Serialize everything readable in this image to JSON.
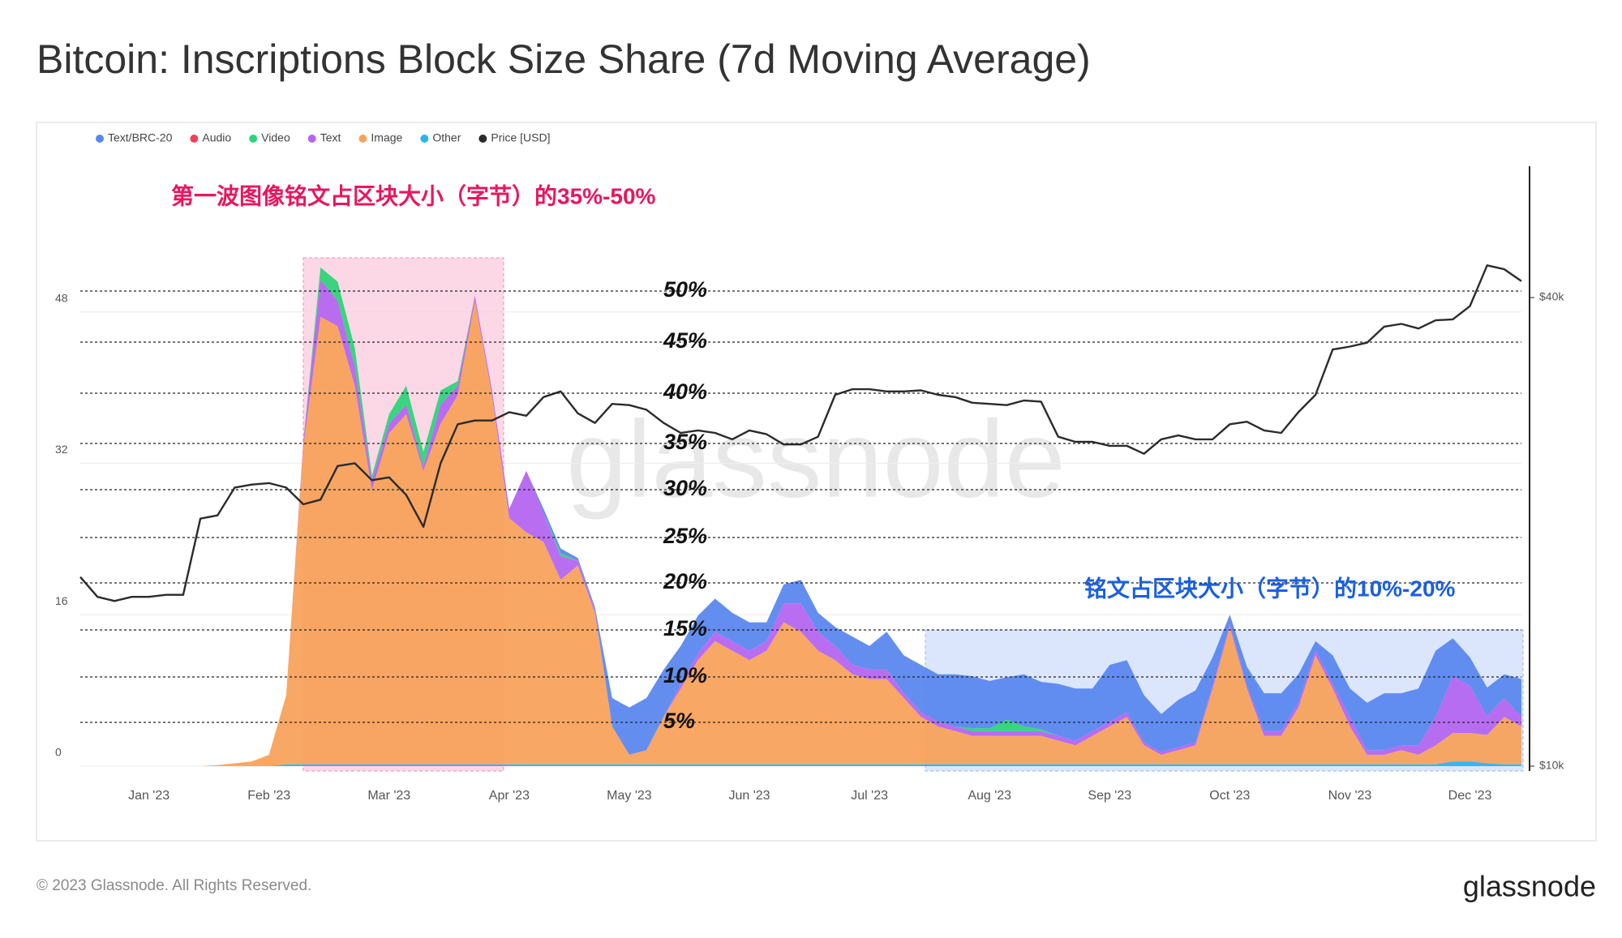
{
  "chart_data": {
    "type": "area",
    "stacked": true,
    "title": "Bitcoin: Inscriptions Block Size Share (7d Moving Average)",
    "categories": [
      null,
      null,
      null,
      null,
      "Jan '23",
      null,
      null,
      null,
      null,
      null,
      null,
      "Feb '23",
      null,
      null,
      null,
      null,
      null,
      null,
      "Mar '23",
      null,
      null,
      null,
      null,
      null,
      null,
      "Apr '23",
      null,
      null,
      null,
      null,
      null,
      null,
      "May '23",
      null,
      null,
      null,
      null,
      null,
      null,
      "Jun '23",
      null,
      null,
      null,
      null,
      null,
      null,
      "Jul '23",
      null,
      null,
      null,
      null,
      null,
      null,
      "Aug '23",
      null,
      null,
      null,
      null,
      null,
      null,
      "Sep '23",
      null,
      null,
      null,
      null,
      null,
      null,
      "Oct '23",
      null,
      null,
      null,
      null,
      null,
      null,
      "Nov '23",
      null,
      null,
      null,
      null,
      null,
      null,
      "Dec '23",
      null,
      null,
      null
    ],
    "series": [
      {
        "name": "Text/BRC-20",
        "color": "#5b88ef",
        "values": [
          0,
          0,
          0,
          0,
          0,
          0,
          0,
          0,
          0,
          0,
          0,
          0,
          0,
          0,
          0,
          0,
          0,
          0,
          0,
          0,
          0,
          0,
          0,
          0,
          0,
          0,
          0,
          0.5,
          0.5,
          0.3,
          0.3,
          3,
          5,
          5.5,
          5,
          4,
          4,
          3.5,
          3,
          3,
          2,
          2,
          2.5,
          2,
          2,
          3,
          2.5,
          4,
          4,
          5,
          5,
          5.5,
          5.5,
          5,
          4.5,
          5.5,
          5,
          5.5,
          5.5,
          4.5,
          6,
          5.5,
          5,
          4,
          5,
          5.5,
          3,
          1,
          2,
          4,
          4,
          3,
          1,
          3,
          3,
          5,
          6,
          5.5,
          6,
          7,
          4,
          3,
          3,
          2.5,
          4
        ]
      },
      {
        "name": "Audio",
        "color": "#f0405a",
        "values": [
          0,
          0,
          0,
          0,
          0,
          0,
          0,
          0,
          0,
          0,
          0,
          0,
          0,
          0,
          0,
          0,
          0,
          0,
          0,
          0,
          0,
          0,
          0,
          0,
          0,
          0,
          0,
          0,
          0,
          0,
          0,
          0,
          0,
          0,
          0,
          0,
          0,
          0,
          0,
          0,
          0,
          0,
          0,
          0,
          0,
          0,
          0,
          0,
          0,
          0,
          0,
          0,
          0,
          0,
          0,
          0,
          0,
          0,
          0,
          0,
          0,
          0,
          0,
          0,
          0,
          0,
          0,
          0,
          0,
          0,
          0,
          0,
          0,
          0,
          0,
          0,
          0,
          0,
          0,
          0,
          0,
          0,
          0,
          0,
          0
        ]
      },
      {
        "name": "Video",
        "color": "#2fd47a",
        "values": [
          0,
          0,
          0,
          0,
          0,
          0,
          0,
          0,
          0,
          0,
          0,
          0,
          0,
          0,
          1.3,
          2,
          2,
          0.5,
          1,
          2,
          1.5,
          1.5,
          0.5,
          0,
          0,
          0,
          0,
          0,
          0.3,
          0,
          0,
          0,
          0,
          0,
          0,
          0,
          0,
          0,
          0,
          0,
          0,
          0,
          0,
          0,
          0,
          0,
          0,
          0,
          0,
          0,
          0,
          0,
          0.3,
          0.3,
          1.2,
          0.5,
          0.2,
          0,
          0,
          0,
          0,
          0,
          0,
          0,
          0,
          0,
          0,
          0,
          0,
          0,
          0,
          0,
          0,
          0,
          0,
          0,
          0,
          0,
          0,
          0,
          0,
          0,
          0,
          0,
          0
        ]
      },
      {
        "name": "Text",
        "color": "#b566f0",
        "values": [
          0,
          0,
          0,
          0,
          0,
          0,
          0,
          0,
          0,
          0,
          0,
          0,
          0,
          0.5,
          3.9,
          2.7,
          2,
          1,
          1,
          1,
          0.5,
          2,
          1,
          0.5,
          0.5,
          1,
          6.5,
          3,
          2.5,
          0.5,
          0.3,
          0,
          0,
          0,
          0,
          0.5,
          0.7,
          1,
          1,
          1,
          1,
          2,
          3,
          2,
          1.5,
          1,
          1,
          1,
          0.5,
          0.5,
          0.5,
          0.5,
          0.5,
          0.5,
          0.5,
          0.5,
          0.5,
          0.5,
          0.5,
          0.5,
          0.5,
          0.5,
          0.3,
          0.3,
          0.3,
          0.3,
          0.3,
          0.3,
          0.3,
          0.5,
          0.5,
          0.5,
          0.5,
          0.5,
          1,
          0.5,
          0.5,
          0.5,
          1,
          3,
          6,
          5,
          2,
          2,
          1
        ]
      },
      {
        "name": "Image",
        "color": "#f8a25c",
        "values": [
          0,
          0,
          0,
          0,
          0,
          0,
          0,
          0,
          0.1,
          0.3,
          0.5,
          1.2,
          7.3,
          33.6,
          47.3,
          46.3,
          40,
          29,
          35,
          37,
          31,
          36,
          39,
          49,
          39,
          26,
          24.5,
          23.5,
          19.5,
          21,
          16,
          4,
          1,
          1.5,
          5,
          8,
          11,
          13,
          12,
          11,
          12,
          15,
          14,
          12,
          11,
          9.5,
          9,
          9,
          7,
          5,
          4,
          3.5,
          3,
          3,
          3,
          3,
          3,
          2.5,
          2,
          3,
          4,
          5,
          2,
          1,
          1.5,
          2,
          8,
          14.5,
          8,
          3,
          3,
          6,
          11.5,
          8,
          4,
          1,
          1,
          1.5,
          1,
          2,
          3,
          3,
          3,
          5,
          4
        ]
      },
      {
        "name": "Other",
        "color": "#2bb3f0",
        "values": [
          0,
          0,
          0,
          0,
          0,
          0,
          0,
          0,
          0,
          0,
          0,
          0,
          0.2,
          0.2,
          0.2,
          0.2,
          0.2,
          0.2,
          0.2,
          0.2,
          0.2,
          0.2,
          0.2,
          0.2,
          0.2,
          0.2,
          0.2,
          0.2,
          0.2,
          0.2,
          0.2,
          0.2,
          0.2,
          0.2,
          0.2,
          0.2,
          0.2,
          0.2,
          0.2,
          0.2,
          0.2,
          0.2,
          0.2,
          0.2,
          0.2,
          0.2,
          0.2,
          0.2,
          0.2,
          0.2,
          0.2,
          0.2,
          0.2,
          0.2,
          0.2,
          0.2,
          0.2,
          0.2,
          0.2,
          0.2,
          0.2,
          0.2,
          0.2,
          0.2,
          0.2,
          0.2,
          0.2,
          0.2,
          0.2,
          0.2,
          0.2,
          0.2,
          0.2,
          0.2,
          0.2,
          0.2,
          0.2,
          0.2,
          0.2,
          0.2,
          0.5,
          0.5,
          0.3,
          0.2,
          0.2
        ]
      },
      {
        "name": "Price [USD]",
        "color": "#2b2b2b",
        "type": "line",
        "axis": "y2",
        "values": [
          17500,
          16500,
          16300,
          16500,
          16500,
          16600,
          16600,
          20800,
          21000,
          22800,
          23000,
          23100,
          22800,
          21700,
          22000,
          24300,
          24500,
          23300,
          23500,
          22300,
          20300,
          24500,
          27500,
          27800,
          27800,
          28500,
          28200,
          29800,
          30300,
          28400,
          27600,
          29200,
          29100,
          28700,
          27600,
          26800,
          27000,
          26800,
          26300,
          27000,
          26700,
          25900,
          25900,
          26500,
          30000,
          30500,
          30500,
          30300,
          30300,
          30400,
          30000,
          29800,
          29300,
          29200,
          29100,
          29500,
          29400,
          26500,
          26100,
          26100,
          25800,
          25800,
          25200,
          26300,
          26600,
          26300,
          26300,
          27500,
          27700,
          27000,
          26800,
          28500,
          30000,
          34300,
          34600,
          35000,
          36700,
          37000,
          36500,
          37400,
          37500,
          39000,
          44000,
          43500,
          42000
        ]
      }
    ],
    "ylim": [
      0,
      63.4
    ],
    "yticks": [
      0,
      16,
      32,
      48
    ],
    "y2lim": [
      10000,
      59000
    ],
    "y2ticks": [
      {
        "value": 10000,
        "label": "$10k"
      },
      {
        "value": 40000,
        "label": "$40k"
      }
    ],
    "y2_log": true,
    "grid": true,
    "legend": "top-left",
    "guide_labels": [
      "50%",
      "45%",
      "40%",
      "35%",
      "30%",
      "25%",
      "20%",
      "15%",
      "10%",
      "5%"
    ],
    "annotations": [
      "第一波图像铭文占区块大小（字节）的35%-50%",
      "铭文占区块大小（字节）的10%-20%"
    ],
    "watermark": "glassnode"
  },
  "footer": {
    "copyright": "© 2023 Glassnode. All Rights Reserved.",
    "brand": "glassnode"
  }
}
